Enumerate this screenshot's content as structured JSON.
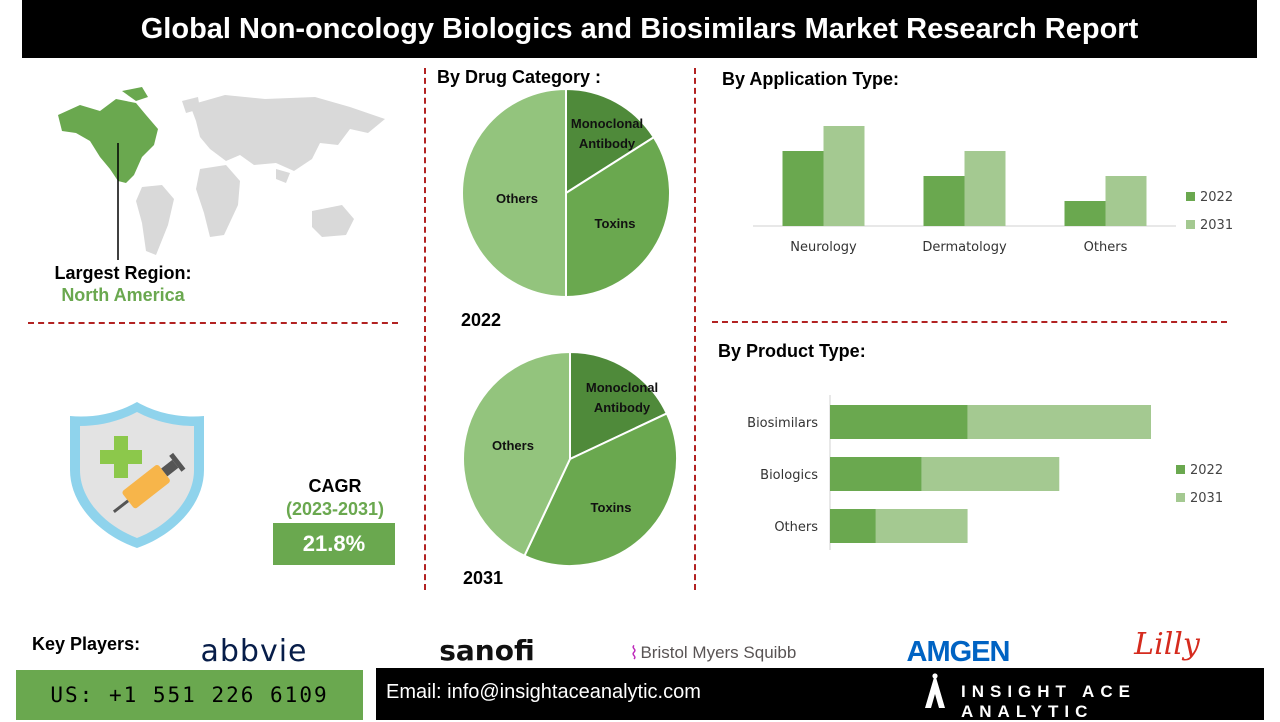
{
  "title": "Global Non-oncology Biologics and Biosimilars Market Research Report",
  "region": {
    "label": "Largest Region:",
    "value": "North America"
  },
  "cagr": {
    "label": "CAGR",
    "period": "(2023-2031)",
    "value": "21.8%"
  },
  "drug_category": {
    "title": "By Drug Category :",
    "pies": [
      {
        "year": "2022",
        "slices": [
          {
            "label": "Monoclonal Antibody",
            "value": 16,
            "color": "#4f8a3a"
          },
          {
            "label": "Toxins",
            "value": 34,
            "color": "#6aa84f"
          },
          {
            "label": "Others",
            "value": 50,
            "color": "#93c47d"
          }
        ]
      },
      {
        "year": "2031",
        "slices": [
          {
            "label": "Monoclonal Antibody",
            "value": 18,
            "color": "#4f8a3a"
          },
          {
            "label": "Toxins",
            "value": 39,
            "color": "#6aa84f"
          },
          {
            "label": "Others",
            "value": 43,
            "color": "#93c47d"
          }
        ]
      }
    ]
  },
  "chart_data": [
    {
      "type": "pie",
      "title": "By Drug Category :",
      "subtitle": "2022",
      "categories": [
        "Monoclonal Antibody",
        "Toxins",
        "Others"
      ],
      "values": [
        16,
        34,
        50
      ]
    },
    {
      "type": "pie",
      "title": "By Drug Category :",
      "subtitle": "2031",
      "categories": [
        "Monoclonal Antibody",
        "Toxins",
        "Others"
      ],
      "values": [
        18,
        39,
        43
      ]
    },
    {
      "type": "bar",
      "title": "By Application Type:",
      "categories": [
        "Neurology",
        "Dermatology",
        "Others"
      ],
      "series": [
        {
          "name": "2022",
          "values": [
            3,
            2,
            1
          ],
          "color": "#6aa84f"
        },
        {
          "name": "2031",
          "values": [
            4,
            3,
            2
          ],
          "color": "#a4c991"
        }
      ],
      "ylim": [
        0,
        4
      ],
      "legend": "right"
    },
    {
      "type": "bar",
      "orientation": "horizontal-stacked",
      "title": "By Product Type:",
      "categories": [
        "Biosimilars",
        "Biologics",
        "Others"
      ],
      "series": [
        {
          "name": "2022",
          "values": [
            3,
            2,
            1
          ],
          "color": "#6aa84f"
        },
        {
          "name": "2031",
          "values": [
            4,
            3,
            2
          ],
          "color": "#a4c991"
        }
      ],
      "xlim": [
        0,
        7
      ],
      "legend": "right"
    }
  ],
  "footer": {
    "key_players_label": "Key Players:",
    "players": [
      "abbvie",
      "sanofi",
      "Bristol Myers Squibb",
      "AMGEN",
      "Lilly"
    ],
    "phone": "US: +1 551 226 6109",
    "email": "Email: info@insightaceanalytic.com",
    "brand": "INSIGHT ACE ANALYTIC"
  },
  "colors": {
    "accent": "#6aa84f",
    "dark_green": "#4f8a3a",
    "light_green": "#a4c991",
    "divider": "#b22222"
  }
}
